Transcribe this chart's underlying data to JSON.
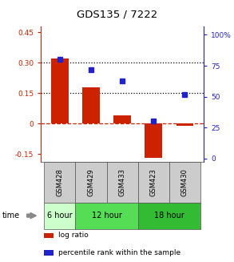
{
  "title": "GDS135 / 7222",
  "samples": [
    "GSM428",
    "GSM429",
    "GSM433",
    "GSM423",
    "GSM430"
  ],
  "log_ratios": [
    0.32,
    0.18,
    0.04,
    -0.17,
    -0.01
  ],
  "percentile_ranks": [
    80,
    72,
    63,
    30,
    52
  ],
  "bar_color": "#cc2200",
  "dot_color": "#2222cc",
  "ylim_left": [
    -0.19,
    0.48
  ],
  "ylim_right": [
    -3,
    107
  ],
  "yticks_left": [
    -0.15,
    0.0,
    0.15,
    0.3,
    0.45
  ],
  "ytick_labels_left": [
    "-0.15",
    "0",
    "0.15",
    "0.30",
    "0.45"
  ],
  "yticks_right": [
    0,
    25,
    50,
    75,
    100
  ],
  "ytick_labels_right": [
    "0",
    "25",
    "50",
    "75",
    "100%"
  ],
  "hlines": [
    0.15,
    0.3
  ],
  "time_groups": [
    {
      "label": "6 hour",
      "indices": [
        0
      ],
      "color": "#ccffcc"
    },
    {
      "label": "12 hour",
      "indices": [
        1,
        2
      ],
      "color": "#55dd55"
    },
    {
      "label": "18 hour",
      "indices": [
        3,
        4
      ],
      "color": "#33bb33"
    }
  ],
  "sample_bg_color": "#cccccc",
  "legend_items": [
    {
      "color": "#cc2200",
      "label": "log ratio"
    },
    {
      "color": "#2222cc",
      "label": "percentile rank within the sample"
    }
  ]
}
